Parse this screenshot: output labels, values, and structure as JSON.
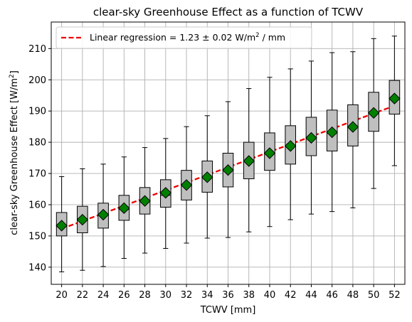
{
  "chart_data": {
    "type": "box",
    "title": "clear-sky Greenhouse Effect as a function of TCWV",
    "xlabel": "TCWV [mm]",
    "ylabel": "clear-sky Greenhouse Effect [W/m²]",
    "ylim": [
      134.5,
      218.5
    ],
    "xlim": [
      19,
      53
    ],
    "grid": true,
    "x_ticks": [
      20,
      22,
      24,
      26,
      28,
      30,
      32,
      34,
      36,
      38,
      40,
      42,
      44,
      46,
      48,
      50,
      52
    ],
    "y_ticks": [
      140,
      150,
      160,
      170,
      180,
      190,
      200,
      210
    ],
    "colors": {
      "box_fill": "#bfbfbf",
      "box_edge": "#000000",
      "mean_marker": "#008000",
      "regression_line": "#ee0000",
      "grid": "#b0b0b0"
    },
    "boxes": [
      {
        "x": 20,
        "whisker_low": 138.5,
        "q1": 150.0,
        "median": 153.0,
        "q3": 157.5,
        "whisker_high": 169.0,
        "mean": 153.3
      },
      {
        "x": 22,
        "whisker_low": 139.0,
        "q1": 151.0,
        "median": 155.5,
        "q3": 159.5,
        "whisker_high": 171.5,
        "mean": 155.2
      },
      {
        "x": 24,
        "whisker_low": 140.2,
        "q1": 152.5,
        "median": 157.0,
        "q3": 160.5,
        "whisker_high": 173.0,
        "mean": 156.8
      },
      {
        "x": 26,
        "whisker_low": 142.8,
        "q1": 155.0,
        "median": 158.5,
        "q3": 163.0,
        "whisker_high": 175.3,
        "mean": 158.9
      },
      {
        "x": 28,
        "whisker_low": 144.5,
        "q1": 157.0,
        "median": 161.0,
        "q3": 165.5,
        "whisker_high": 178.3,
        "mean": 161.2
      },
      {
        "x": 30,
        "whisker_low": 146.0,
        "q1": 159.2,
        "median": 163.0,
        "q3": 168.0,
        "whisker_high": 181.2,
        "mean": 163.8
      },
      {
        "x": 32,
        "whisker_low": 147.7,
        "q1": 161.5,
        "median": 166.0,
        "q3": 171.0,
        "whisker_high": 185.0,
        "mean": 166.3
      },
      {
        "x": 34,
        "whisker_low": 149.3,
        "q1": 164.0,
        "median": 169.0,
        "q3": 174.0,
        "whisker_high": 188.5,
        "mean": 168.8
      },
      {
        "x": 36,
        "whisker_low": 149.5,
        "q1": 165.7,
        "median": 171.0,
        "q3": 176.5,
        "whisker_high": 193.0,
        "mean": 171.1
      },
      {
        "x": 38,
        "whisker_low": 151.3,
        "q1": 168.3,
        "median": 174.0,
        "q3": 180.0,
        "whisker_high": 197.2,
        "mean": 174.0
      },
      {
        "x": 40,
        "whisker_low": 153.0,
        "q1": 171.0,
        "median": 176.5,
        "q3": 183.0,
        "whisker_high": 200.8,
        "mean": 176.5
      },
      {
        "x": 42,
        "whisker_low": 155.2,
        "q1": 173.0,
        "median": 179.0,
        "q3": 185.3,
        "whisker_high": 203.5,
        "mean": 178.8
      },
      {
        "x": 44,
        "whisker_low": 157.0,
        "q1": 175.7,
        "median": 181.5,
        "q3": 188.0,
        "whisker_high": 206.0,
        "mean": 181.4
      },
      {
        "x": 46,
        "whisker_low": 157.8,
        "q1": 177.2,
        "median": 183.0,
        "q3": 190.3,
        "whisker_high": 208.7,
        "mean": 183.2
      },
      {
        "x": 48,
        "whisker_low": 159.0,
        "q1": 178.8,
        "median": 185.0,
        "q3": 192.0,
        "whisker_high": 209.0,
        "mean": 184.9
      },
      {
        "x": 50,
        "whisker_low": 165.2,
        "q1": 183.5,
        "median": 189.5,
        "q3": 196.0,
        "whisker_high": 213.2,
        "mean": 189.4
      },
      {
        "x": 52,
        "whisker_low": 172.5,
        "q1": 189.0,
        "median": 194.0,
        "q3": 199.8,
        "whisker_high": 214.0,
        "mean": 194.0
      }
    ],
    "regression": {
      "label": "Linear regression = 1.23 ± 0.02 W/m² / mm",
      "slope": 1.23,
      "x_start": 20,
      "y_start": 152.3,
      "x_end": 52,
      "y_end": 191.7
    },
    "legend_position": "top-left"
  }
}
